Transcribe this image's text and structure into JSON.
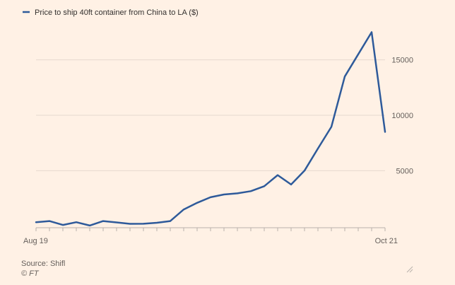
{
  "chart_data": {
    "type": "line",
    "title": "",
    "xlabel": "",
    "ylabel": "",
    "series": [
      {
        "name": "Price to ship 40ft container from China to LA ($)",
        "color": "#2e5a9a",
        "x": [
          "Aug 19",
          "Sep 19",
          "Oct 19",
          "Nov 19",
          "Dec 19",
          "Jan 20",
          "Feb 20",
          "Mar 20",
          "Apr 20",
          "May 20",
          "Jun 20",
          "Jul 20",
          "Aug 20",
          "Sep 20",
          "Oct 20",
          "Nov 20",
          "Dec 20",
          "Jan 21",
          "Feb 21",
          "Mar 21",
          "Apr 21",
          "May 21",
          "Jun 21",
          "Jul 21",
          "Aug 21",
          "Sep 21",
          "Oct 21"
        ],
        "y": [
          350,
          450,
          100,
          350,
          50,
          450,
          330,
          200,
          210,
          300,
          450,
          1500,
          2100,
          2600,
          2850,
          2950,
          3150,
          3600,
          4600,
          3750,
          5000,
          7000,
          8950,
          13500,
          15500,
          17500,
          8500
        ]
      }
    ],
    "x_tick_labels": [
      "Aug 19",
      "Oct 21"
    ],
    "y_ticks": [
      5000,
      10000,
      15000
    ],
    "y_tick_labels": [
      "5000",
      "10000",
      "15000"
    ],
    "ylim": [
      -150,
      19000
    ],
    "y_axis_side": "right",
    "grid": true,
    "legend_position": "top-left"
  },
  "footer": {
    "source": "Source: Shifl",
    "credit": "© FT"
  }
}
